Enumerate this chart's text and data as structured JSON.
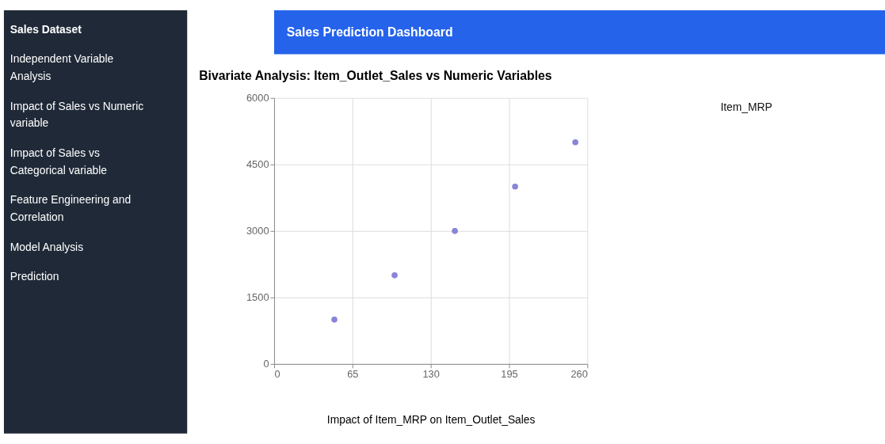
{
  "chart_data": {
    "type": "scatter",
    "title": "Bivariate Analysis: Item_Outlet_Sales vs Numeric Variables",
    "xlabel": "Impact of Item_MRP on Item_Outlet_Sales",
    "x": [
      50,
      100,
      150,
      200,
      250
    ],
    "series": [
      {
        "color": "#8884d8",
        "values": [
          1000,
          2000,
          3000,
          4000,
          5000
        ]
      }
    ],
    "xlim": [
      0,
      260
    ],
    "xticks": [
      0,
      65,
      130,
      195,
      260
    ],
    "ylim": [
      0,
      6000
    ],
    "yticks": [
      0,
      1500,
      3000,
      4500,
      6000
    ],
    "grid": true,
    "marker": "circle",
    "legend": false,
    "annotations": [
      "Sales Dataset",
      "Independent Variable Analysis",
      "Impact of Sales vs Numeric variable",
      "Impact of Sales vs Categorical variable",
      "Feature Engineering and Correlation",
      "Model Analysis",
      "Prediction",
      "Sales Prediction Dashboard",
      "Item_MRP"
    ]
  }
}
